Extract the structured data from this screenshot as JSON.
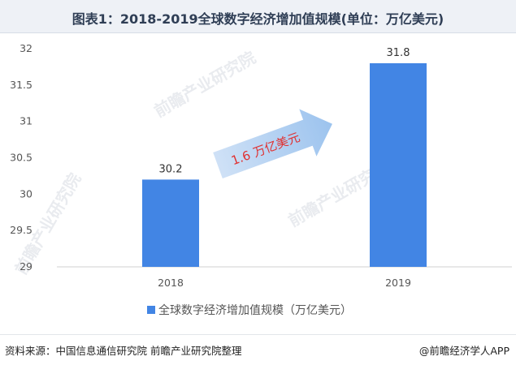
{
  "header": {
    "title": "图表1：2018-2019全球数字经济增加值规模(单位：万亿美元)"
  },
  "chart_data": {
    "type": "bar",
    "categories": [
      "2018",
      "2019"
    ],
    "series": [
      {
        "name": "全球数字经济增加值规模（万亿美元）",
        "values": [
          30.2,
          31.8
        ]
      }
    ],
    "data_labels": [
      "30.2",
      "31.8"
    ],
    "ylim": [
      29,
      32
    ],
    "yticks": [
      29,
      29.5,
      30,
      30.5,
      31,
      31.5,
      32
    ],
    "ytick_labels": [
      "29",
      "29.5",
      "30",
      "30.5",
      "31",
      "31.5",
      "32"
    ],
    "grid": false,
    "legend_position": "bottom",
    "bar_color": "#4285e4",
    "annotation": {
      "text": "1.6 万亿美元"
    }
  },
  "footer": {
    "source": "资料来源：中国信息通信研究院 前瞻产业研究院整理",
    "brand": "@前瞻经济学人APP"
  },
  "watermark": {
    "text": "前瞻产业研究院"
  }
}
